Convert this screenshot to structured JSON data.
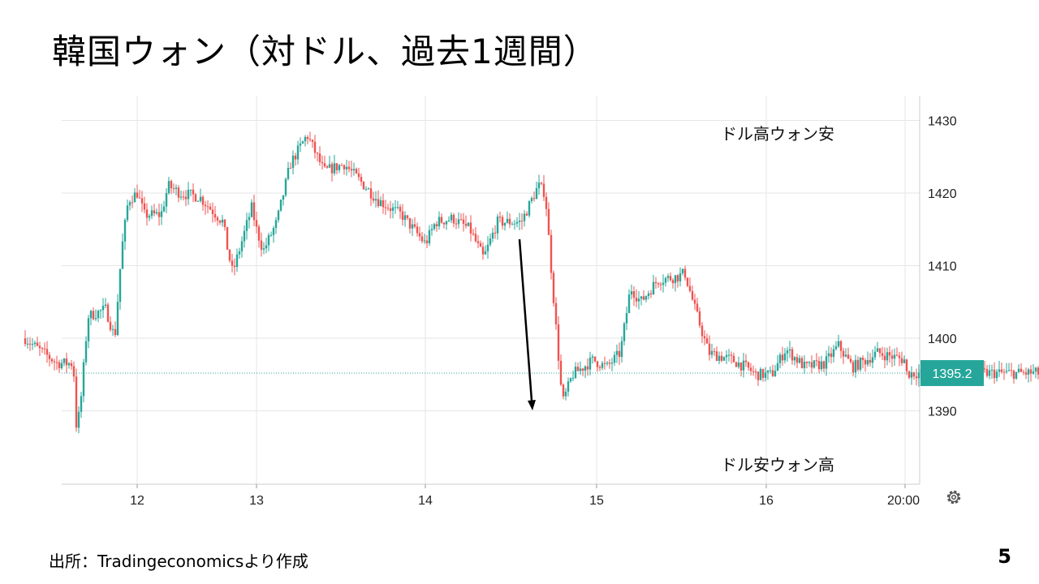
{
  "slide": {
    "title": "韓国ウォン（対ドル、過去1週間）",
    "source": "出所：Tradingeconomicsより作成",
    "page_number": "5"
  },
  "colors": {
    "up": "#26a69a",
    "down": "#ef5350",
    "grid": "#e6e6e6",
    "price_label_bg": "#26a69a"
  },
  "chart_data": {
    "type": "candlestick",
    "title": "",
    "ylim": [
      1380,
      1432
    ],
    "yticks": [
      1390,
      1400,
      1410,
      1420,
      1430
    ],
    "ytick_labels": [
      "1390",
      "1400",
      "1410",
      "1420",
      "1430"
    ],
    "xticks": [
      "12",
      "13",
      "14",
      "15",
      "16",
      "20:00"
    ],
    "last_price": 1395.2,
    "last_price_label": "1395.2",
    "annotations": {
      "top": "ドル高ウォン安",
      "bottom": "ドル安ウォン高"
    },
    "anchors": [
      [
        0,
        1400
      ],
      [
        0.06,
        1399.2
      ],
      [
        0.16,
        1398
      ],
      [
        0.28,
        1396.6
      ],
      [
        0.43,
        1396.5
      ],
      [
        0.46,
        1387
      ],
      [
        0.5,
        1392
      ],
      [
        0.56,
        1403
      ],
      [
        0.72,
        1404
      ],
      [
        0.8,
        1400
      ],
      [
        0.86,
        1412
      ],
      [
        0.92,
        1419
      ],
      [
        1.0,
        1420
      ],
      [
        1.06,
        1417
      ],
      [
        1.2,
        1417
      ],
      [
        1.26,
        1421
      ],
      [
        1.36,
        1420
      ],
      [
        1.52,
        1419.5
      ],
      [
        1.72,
        1416
      ],
      [
        1.76,
        1412
      ],
      [
        1.8,
        1409
      ],
      [
        1.96,
        1418
      ],
      [
        2.04,
        1412
      ],
      [
        2.12,
        1416
      ],
      [
        2.2,
        1424
      ],
      [
        2.3,
        1428
      ],
      [
        2.4,
        1423
      ],
      [
        2.52,
        1424
      ],
      [
        2.72,
        1419
      ],
      [
        2.86,
        1417
      ],
      [
        3.0,
        1413
      ],
      [
        3.06,
        1416
      ],
      [
        3.16,
        1416.5
      ],
      [
        3.26,
        1415
      ],
      [
        3.34,
        1411
      ],
      [
        3.42,
        1416
      ],
      [
        3.56,
        1416
      ],
      [
        3.62,
        1419
      ],
      [
        3.66,
        1421
      ],
      [
        3.7,
        1420
      ],
      [
        3.74,
        1408
      ],
      [
        3.8,
        1391
      ],
      [
        3.86,
        1395
      ],
      [
        3.98,
        1397
      ],
      [
        4.06,
        1396
      ],
      [
        4.14,
        1398
      ],
      [
        4.2,
        1407
      ],
      [
        4.26,
        1405
      ],
      [
        4.36,
        1408
      ],
      [
        4.48,
        1408.5
      ],
      [
        4.52,
        1409
      ],
      [
        4.58,
        1404
      ],
      [
        4.66,
        1398
      ],
      [
        4.8,
        1397
      ],
      [
        4.88,
        1396
      ],
      [
        4.94,
        1395
      ],
      [
        5.04,
        1395
      ],
      [
        5.14,
        1398.5
      ],
      [
        5.28,
        1396
      ],
      [
        5.42,
        1396.5
      ],
      [
        5.52,
        1399
      ],
      [
        5.62,
        1396
      ],
      [
        5.72,
        1397
      ],
      [
        5.8,
        1398
      ],
      [
        5.9,
        1397.5
      ],
      [
        6.0,
        1397
      ],
      [
        6.12,
        1397
      ],
      [
        6.16,
        1394
      ],
      [
        6.26,
        1396.5
      ],
      [
        6.34,
        1395
      ],
      [
        6.46,
        1393
      ],
      [
        6.56,
        1390
      ],
      [
        6.66,
        1389.5
      ],
      [
        6.74,
        1391
      ],
      [
        6.8,
        1392
      ],
      [
        6.86,
        1394
      ],
      [
        6.94,
        1396
      ],
      [
        6.97,
        1395.2
      ]
    ]
  }
}
